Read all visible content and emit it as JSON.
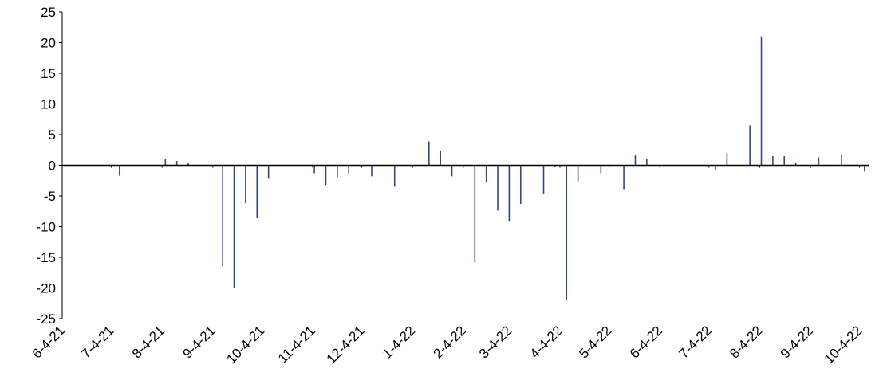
{
  "chart_data": {
    "type": "bar",
    "color": "#2e4a87",
    "x": [
      "2021-07-09",
      "2021-08-06",
      "2021-08-13",
      "2021-08-20",
      "2021-09-10",
      "2021-09-17",
      "2021-09-24",
      "2021-10-01",
      "2021-10-08",
      "2021-11-05",
      "2021-11-12",
      "2021-11-19",
      "2021-11-26",
      "2021-12-10",
      "2021-12-24",
      "2022-01-14",
      "2022-01-21",
      "2022-01-28",
      "2022-02-11",
      "2022-02-18",
      "2022-02-25",
      "2022-03-04",
      "2022-03-11",
      "2022-03-25",
      "2022-04-01",
      "2022-04-08",
      "2022-04-15",
      "2022-04-29",
      "2022-05-13",
      "2022-05-20",
      "2022-05-27",
      "2022-07-08",
      "2022-07-15",
      "2022-07-29",
      "2022-08-05",
      "2022-08-12",
      "2022-08-19",
      "2022-08-26",
      "2022-09-09",
      "2022-09-23",
      "2022-10-07"
    ],
    "values": [
      -1.7,
      1.0,
      0.7,
      0.4,
      -16.5,
      -20,
      -6.2,
      -8.6,
      -2.2,
      -1.3,
      -3.2,
      -1.9,
      -1.4,
      -1.8,
      -3.5,
      3.9,
      2.3,
      -1.8,
      -15.8,
      -2.7,
      -7.4,
      -9.2,
      -6.3,
      -4.7,
      -0.3,
      -22,
      -2.6,
      -1.3,
      -3.9,
      1.6,
      1.0,
      -0.8,
      2.0,
      6.5,
      21,
      1.5,
      1.5,
      0.4,
      1.3,
      1.8,
      -1.0
    ],
    "xlim": [
      "2021-06-04",
      "2022-10-10"
    ],
    "xticks": [
      {
        "value": "2021-06-04",
        "label": "6-4-21"
      },
      {
        "value": "2021-07-04",
        "label": "7-4-21"
      },
      {
        "value": "2021-08-04",
        "label": "8-4-21"
      },
      {
        "value": "2021-09-04",
        "label": "9-4-21"
      },
      {
        "value": "2021-10-04",
        "label": "10-4-21"
      },
      {
        "value": "2021-11-04",
        "label": "11-4-21"
      },
      {
        "value": "2021-12-04",
        "label": "12-4-21"
      },
      {
        "value": "2022-01-04",
        "label": "1-4-22"
      },
      {
        "value": "2022-02-04",
        "label": "2-4-22"
      },
      {
        "value": "2022-03-04",
        "label": "3-4-22"
      },
      {
        "value": "2022-04-04",
        "label": "4-4-22"
      },
      {
        "value": "2022-05-04",
        "label": "5-4-22"
      },
      {
        "value": "2022-06-04",
        "label": "6-4-22"
      },
      {
        "value": "2022-07-04",
        "label": "7-4-22"
      },
      {
        "value": "2022-08-04",
        "label": "8-4-22"
      },
      {
        "value": "2022-09-04",
        "label": "9-4-22"
      },
      {
        "value": "2022-10-04",
        "label": "10-4-22"
      }
    ],
    "ylim": [
      -25,
      25
    ],
    "yticks": [
      -25,
      -20,
      -15,
      -10,
      -5,
      0,
      5,
      10,
      15,
      20,
      25
    ]
  }
}
